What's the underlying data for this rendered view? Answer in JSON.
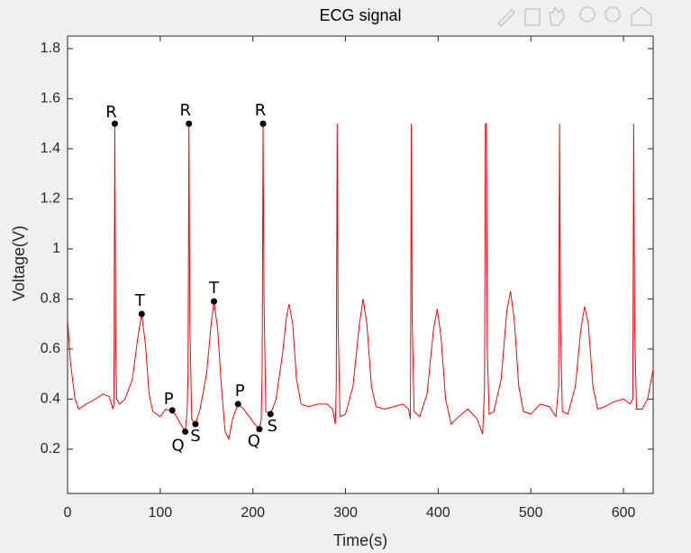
{
  "chart_data": {
    "type": "line",
    "title": "ECG signal",
    "x_label": "Time(s)",
    "y_label": "Voltage(V)",
    "x": [
      0,
      3,
      8,
      12,
      20,
      30,
      38,
      45,
      49,
      50,
      51,
      52,
      53,
      56,
      62,
      70,
      76,
      80,
      84,
      88,
      92,
      100,
      106,
      112,
      116,
      122,
      127,
      129,
      130,
      131,
      132,
      134,
      138,
      143,
      150,
      155,
      158,
      162,
      166,
      170,
      174,
      178,
      184,
      190,
      196,
      202,
      207,
      209,
      210,
      211,
      212,
      214,
      219,
      225,
      232,
      236,
      239,
      243,
      247,
      252,
      260,
      270,
      280,
      286,
      289,
      290,
      291,
      292,
      294,
      300,
      308,
      315,
      319,
      323,
      328,
      333,
      342,
      352,
      362,
      368,
      370,
      371,
      372,
      374,
      380,
      388,
      395,
      399,
      403,
      408,
      414,
      422,
      432,
      442,
      448,
      450,
      451,
      452,
      453,
      455,
      460,
      468,
      474,
      478,
      482,
      487,
      492,
      500,
      510,
      520,
      527,
      530,
      531,
      532,
      534,
      540,
      548,
      554,
      558,
      562,
      567,
      572,
      580,
      590,
      600,
      607,
      610,
      611,
      612,
      614,
      620,
      626,
      632
    ],
    "series": [
      {
        "color": "#ff0000",
        "values": [
          0.72,
          0.55,
          0.4,
          0.36,
          0.38,
          0.4,
          0.42,
          0.41,
          0.36,
          0.38,
          1.5,
          0.6,
          0.4,
          0.38,
          0.4,
          0.48,
          0.65,
          0.74,
          0.62,
          0.42,
          0.35,
          0.33,
          0.36,
          0.35,
          0.34,
          0.3,
          0.27,
          0.35,
          0.5,
          1.5,
          0.7,
          0.32,
          0.3,
          0.36,
          0.5,
          0.7,
          0.79,
          0.68,
          0.45,
          0.27,
          0.24,
          0.32,
          0.38,
          0.36,
          0.33,
          0.3,
          0.28,
          0.32,
          0.5,
          1.5,
          0.8,
          0.35,
          0.34,
          0.4,
          0.58,
          0.72,
          0.78,
          0.7,
          0.48,
          0.38,
          0.37,
          0.38,
          0.38,
          0.36,
          0.3,
          0.45,
          1.5,
          0.7,
          0.33,
          0.34,
          0.45,
          0.7,
          0.8,
          0.7,
          0.45,
          0.37,
          0.36,
          0.37,
          0.38,
          0.36,
          0.32,
          1.5,
          0.7,
          0.35,
          0.33,
          0.42,
          0.68,
          0.76,
          0.65,
          0.4,
          0.3,
          0.33,
          0.36,
          0.32,
          0.26,
          0.45,
          1.5,
          1.5,
          0.6,
          0.34,
          0.35,
          0.48,
          0.75,
          0.83,
          0.72,
          0.45,
          0.35,
          0.34,
          0.38,
          0.37,
          0.33,
          0.45,
          1.5,
          0.7,
          0.35,
          0.34,
          0.45,
          0.68,
          0.77,
          0.7,
          0.45,
          0.36,
          0.37,
          0.39,
          0.4,
          0.38,
          0.4,
          1.5,
          0.7,
          0.36,
          0.36,
          0.4,
          0.52
        ]
      }
    ],
    "annotations": [
      {
        "label": "R",
        "x": 51,
        "y": 1.5
      },
      {
        "label": "R",
        "x": 131,
        "y": 1.5
      },
      {
        "label": "R",
        "x": 211,
        "y": 1.5
      },
      {
        "label": "T",
        "x": 80,
        "y": 0.74
      },
      {
        "label": "T",
        "x": 158,
        "y": 0.79
      },
      {
        "label": "P",
        "x": 113,
        "y": 0.355
      },
      {
        "label": "P",
        "x": 184,
        "y": 0.38
      },
      {
        "label": "Q",
        "x": 127,
        "y": 0.27
      },
      {
        "label": "Q",
        "x": 207,
        "y": 0.28
      },
      {
        "label": "S",
        "x": 138,
        "y": 0.3
      },
      {
        "label": "S",
        "x": 219,
        "y": 0.34
      }
    ],
    "xlim": [
      0,
      632
    ],
    "ylim": [
      0.023,
      1.85
    ],
    "xticks": [
      0,
      100,
      200,
      300,
      400,
      500,
      600
    ],
    "yticks": [
      0.2,
      0.4,
      0.6,
      0.8,
      1,
      1.2,
      1.4,
      1.6,
      1.8
    ]
  }
}
